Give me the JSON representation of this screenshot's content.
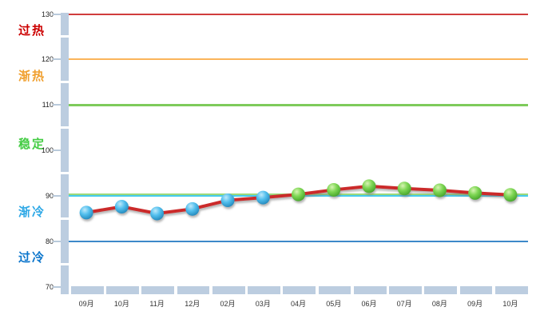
{
  "chart_data": {
    "type": "line",
    "title": "",
    "xlabel": "",
    "ylabel": "",
    "legend": "none",
    "categories": [
      "09月",
      "10月",
      "11月",
      "12月",
      "02月",
      "03月",
      "04月",
      "05月",
      "06月",
      "07月",
      "08月",
      "09月",
      "10月"
    ],
    "values": [
      86.3,
      87.6,
      86.1,
      87.1,
      89.0,
      89.6,
      90.3,
      91.3,
      92.1,
      91.6,
      91.2,
      90.6,
      90.2
    ],
    "marker_styles": [
      "blue",
      "blue",
      "blue",
      "blue",
      "blue",
      "blue",
      "green",
      "green",
      "green",
      "green",
      "green",
      "green",
      "green"
    ],
    "ylim": [
      70,
      130
    ],
    "yticks": [
      130,
      120,
      110,
      100,
      90,
      80,
      70
    ],
    "series_line_color": "#cb2c2c",
    "marker_colors": {
      "blue": {
        "highlight": "#bfe9fa",
        "mid": "#54c0ee",
        "edge": "#1479ae"
      },
      "green": {
        "highlight": "#d8f4b4",
        "mid": "#7fd755",
        "edge": "#35961e"
      }
    },
    "zones": [
      {
        "id": "overheated",
        "label": "过热",
        "text_color": "#cc0000",
        "upper": 130,
        "lower": 120
      },
      {
        "id": "warming",
        "label": "渐热",
        "text_color": "#f0a030",
        "upper": 120,
        "lower": 110
      },
      {
        "id": "stable",
        "label": "稳定",
        "text_color": "#44cc44",
        "upper": 110,
        "lower": 90
      },
      {
        "id": "cooling",
        "label": "渐冷",
        "text_color": "#2ea8e6",
        "upper": 90,
        "lower": 80
      },
      {
        "id": "overcooled",
        "label": "过冷",
        "text_color": "#0d76cc",
        "upper": 80,
        "lower": 70
      }
    ],
    "reference_lines": [
      {
        "value": 130,
        "color": "#d03c3c",
        "width": 2
      },
      {
        "value": 120,
        "color": "#fbb55a",
        "width": 2
      },
      {
        "value": 110,
        "color": "#7ecb5b",
        "width": 3
      },
      {
        "value": 90.4,
        "color": "#9cd97a",
        "width": 2
      },
      {
        "value": 90,
        "color": "#45cbee",
        "width": 2
      },
      {
        "value": 80,
        "color": "#3d89c9",
        "width": 2
      }
    ],
    "axis_color": "#bccde0",
    "tick_mark_color": "#b9cadb",
    "tick_label_color": "#222222",
    "x_label_color": "#333333"
  }
}
